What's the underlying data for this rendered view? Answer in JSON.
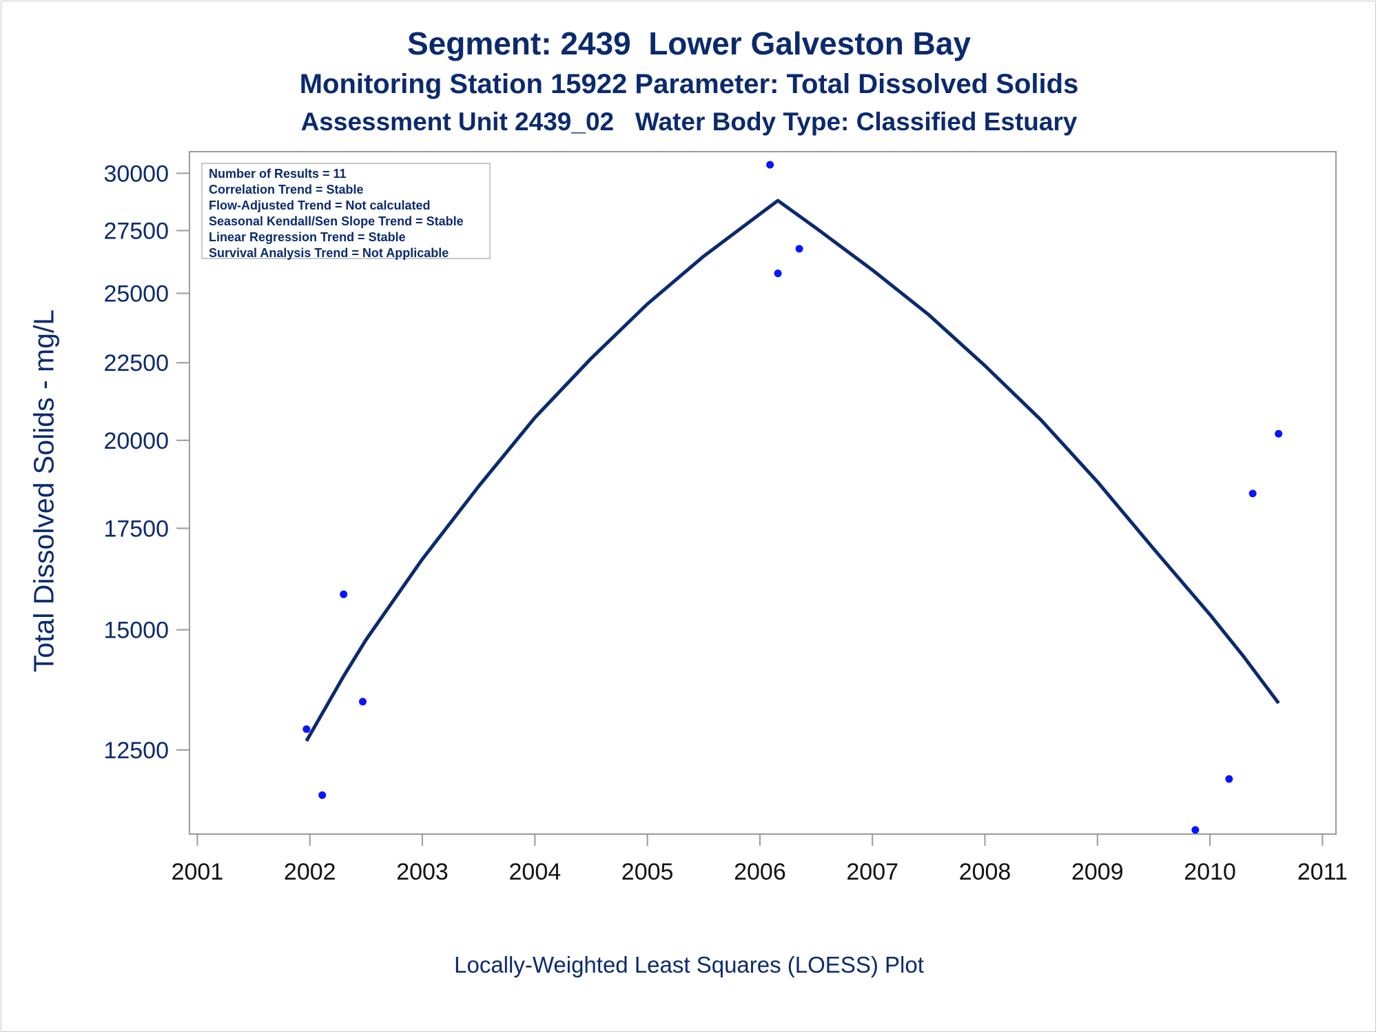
{
  "chart_data": {
    "type": "scatter",
    "title": "Segment: 2439  Lower Galveston Bay",
    "subtitle": "Monitoring Station 15922 Parameter: Total Dissolved Solids",
    "subtitle2": "Assessment Unit 2439_02   Water Body Type: Classified Estuary",
    "ylabel": "Total Dissolved Solids - mg/L",
    "footnote": "Locally-Weighted Least Squares (LOESS) Plot",
    "x_ticks": [
      "2001",
      "2002",
      "2003",
      "2004",
      "2005",
      "2006",
      "2007",
      "2008",
      "2009",
      "2010",
      "2011"
    ],
    "y_ticks": [
      12500,
      15000,
      17500,
      20000,
      22500,
      25000,
      27500,
      30000
    ],
    "xlim": [
      2000.93,
      2011.12
    ],
    "y_scale": "log",
    "ylim": [
      11000,
      31000
    ],
    "grid": false,
    "legend": {
      "position": "top-left",
      "entries": [
        "Number of Results = 11",
        "Correlation Trend = Stable",
        "Flow-Adjusted Trend = Not calculated",
        "Seasonal Kendall/Sen Slope Trend = Stable",
        "Linear Regression Trend = Stable",
        "Survival Analysis Trend = Not Applicable"
      ]
    },
    "series": [
      {
        "type": "scatter",
        "color": "#0a14ff",
        "points": [
          {
            "x": 2001.97,
            "y": 12900
          },
          {
            "x": 2002.11,
            "y": 11670
          },
          {
            "x": 2002.3,
            "y": 15830
          },
          {
            "x": 2002.47,
            "y": 13450
          },
          {
            "x": 2006.09,
            "y": 30390
          },
          {
            "x": 2006.16,
            "y": 25770
          },
          {
            "x": 2006.35,
            "y": 26750
          },
          {
            "x": 2009.87,
            "y": 11070
          },
          {
            "x": 2010.17,
            "y": 11960
          },
          {
            "x": 2010.38,
            "y": 18450
          },
          {
            "x": 2010.61,
            "y": 20200
          }
        ]
      },
      {
        "type": "line",
        "color": "#0b2a6e",
        "points": [
          {
            "x": 2001.97,
            "y": 12670
          },
          {
            "x": 2002.3,
            "y": 13980
          },
          {
            "x": 2002.5,
            "y": 14780
          },
          {
            "x": 2003.0,
            "y": 16700
          },
          {
            "x": 2003.5,
            "y": 18650
          },
          {
            "x": 2004.0,
            "y": 20700
          },
          {
            "x": 2004.5,
            "y": 22650
          },
          {
            "x": 2005.0,
            "y": 24600
          },
          {
            "x": 2005.5,
            "y": 26450
          },
          {
            "x": 2006.0,
            "y": 28200
          },
          {
            "x": 2006.16,
            "y": 28780
          },
          {
            "x": 2006.5,
            "y": 27600
          },
          {
            "x": 2007.0,
            "y": 25900
          },
          {
            "x": 2007.5,
            "y": 24200
          },
          {
            "x": 2008.0,
            "y": 22400
          },
          {
            "x": 2008.5,
            "y": 20620
          },
          {
            "x": 2009.0,
            "y": 18780
          },
          {
            "x": 2009.5,
            "y": 16960
          },
          {
            "x": 2010.0,
            "y": 15350
          },
          {
            "x": 2010.3,
            "y": 14400
          },
          {
            "x": 2010.61,
            "y": 13420
          }
        ]
      }
    ]
  }
}
